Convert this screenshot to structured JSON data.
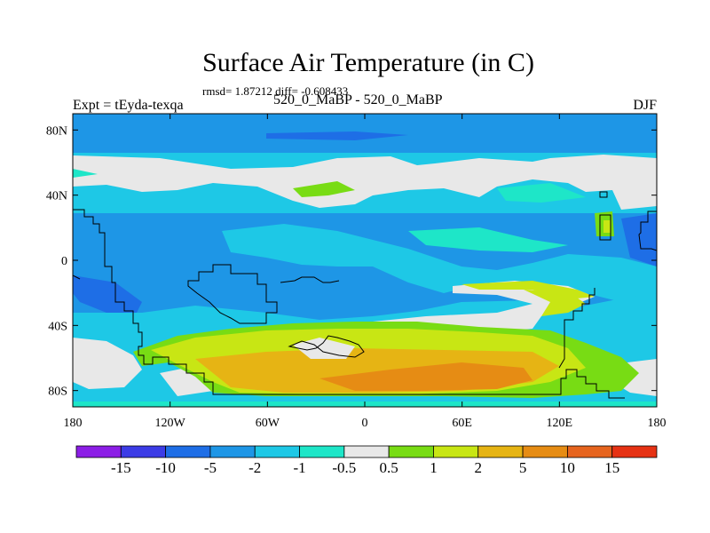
{
  "title": "Surface Air Temperature (in C)",
  "stats_text": "rmsd= 1.87212 diff= -0.608433",
  "experiment_label": "Expt = tEyda-texqa",
  "comparison_label": "520_0_MaBP - 520_0_MaBP",
  "season_label": "DJF",
  "map": {
    "lon_range": [
      -180,
      180
    ],
    "lat_range": [
      -90,
      90
    ],
    "x_ticks": [
      {
        "value": -180,
        "label": "180"
      },
      {
        "value": -120,
        "label": "120W"
      },
      {
        "value": -60,
        "label": "60W"
      },
      {
        "value": 0,
        "label": "0"
      },
      {
        "value": 60,
        "label": "60E"
      },
      {
        "value": 120,
        "label": "120E"
      },
      {
        "value": 180,
        "label": "180"
      }
    ],
    "y_ticks": [
      {
        "value": 80,
        "label": "80N"
      },
      {
        "value": 40,
        "label": "40N"
      },
      {
        "value": 0,
        "label": "0"
      },
      {
        "value": -40,
        "label": "40S"
      },
      {
        "value": -80,
        "label": "80S"
      }
    ]
  },
  "colorbar": {
    "colors": [
      "#8c1ee6",
      "#3c3ce6",
      "#1e6ee6",
      "#1e96e6",
      "#1ec8e6",
      "#1ee6c8",
      "#e8e8e8",
      "#78dc14",
      "#c8e614",
      "#e6b414",
      "#e68c14",
      "#e6641e",
      "#e63214"
    ],
    "labels": [
      "-15",
      "-10",
      "-5",
      "-2",
      "-1",
      "-0.5",
      "0.5",
      "1",
      "2",
      "5",
      "10",
      "15"
    ]
  }
}
